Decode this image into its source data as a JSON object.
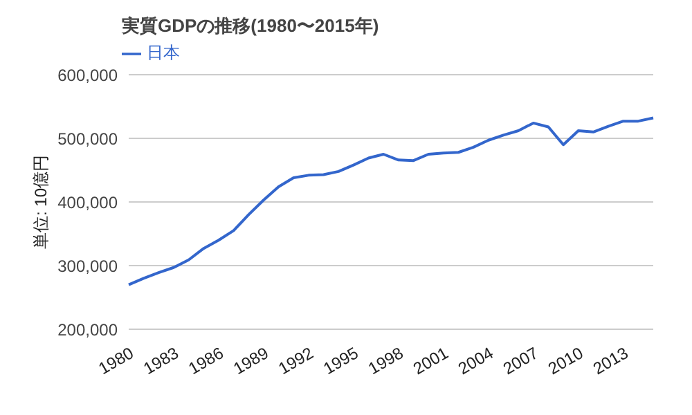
{
  "chart_data": {
    "type": "line",
    "title": "実質GDPの推移(1980〜2015年)",
    "ylabel": "単位: 10億円",
    "categories": [
      "1980",
      null,
      null,
      "1983",
      null,
      null,
      "1986",
      null,
      null,
      "1989",
      null,
      null,
      "1992",
      null,
      null,
      "1995",
      null,
      null,
      "1998",
      null,
      null,
      "2001",
      null,
      null,
      "2004",
      null,
      null,
      "2007",
      null,
      null,
      "2010",
      null,
      null,
      "2013",
      null,
      null
    ],
    "series": [
      {
        "name": "日本",
        "color": "#3366cc",
        "values": [
          270000,
          280000,
          289000,
          297000,
          309000,
          327000,
          340000,
          355000,
          380000,
          403000,
          424000,
          438000,
          442000,
          443000,
          448000,
          458000,
          469000,
          475000,
          466000,
          465000,
          475000,
          477000,
          478000,
          486000,
          497000,
          505000,
          512000,
          524000,
          518000,
          490000,
          512000,
          510000,
          519000,
          527000,
          527000,
          532000
        ]
      }
    ],
    "ylim": [
      200000,
      600000
    ],
    "yticks": [
      {
        "value": 200000,
        "label": "200,000"
      },
      {
        "value": 300000,
        "label": "300,000"
      },
      {
        "value": 400000,
        "label": "400,000"
      },
      {
        "value": 500000,
        "label": "500,000"
      },
      {
        "value": 600000,
        "label": "600,000"
      }
    ],
    "grid": "y",
    "legend": "top left",
    "marker": "none",
    "line_style": "solid"
  }
}
